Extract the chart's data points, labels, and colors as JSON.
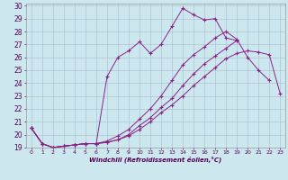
{
  "xlabel": "Windchill (Refroidissement éolien,°C)",
  "background_color": "#cce8ee",
  "line_color": "#882288",
  "grid_color": "#aabbcc",
  "xlim": [
    -0.5,
    23.5
  ],
  "ylim": [
    19,
    30.2
  ],
  "xticks": [
    0,
    1,
    2,
    3,
    4,
    5,
    6,
    7,
    8,
    9,
    10,
    11,
    12,
    13,
    14,
    15,
    16,
    17,
    18,
    19,
    20,
    21,
    22,
    23
  ],
  "yticks": [
    19,
    20,
    21,
    22,
    23,
    24,
    25,
    26,
    27,
    28,
    29,
    30
  ],
  "lines": [
    {
      "x": [
        0,
        1,
        2,
        3,
        4,
        5,
        6,
        7,
        8,
        9,
        10,
        11,
        12,
        13,
        14,
        15,
        16,
        17,
        18,
        19,
        20,
        21,
        22,
        23
      ],
      "y": [
        20.5,
        19.3,
        19.0,
        19.1,
        19.2,
        19.3,
        19.3,
        19.4,
        19.6,
        19.9,
        20.4,
        21.0,
        21.7,
        22.3,
        23.0,
        23.8,
        24.5,
        25.2,
        25.9,
        26.3,
        26.5,
        26.4,
        26.2,
        23.2
      ]
    },
    {
      "x": [
        0,
        1,
        2,
        3,
        4,
        5,
        6,
        7,
        8,
        9,
        10,
        11,
        12,
        13,
        14,
        15,
        16,
        17,
        18,
        19,
        20,
        21,
        22,
        23
      ],
      "y": [
        20.5,
        19.3,
        19.0,
        19.1,
        19.2,
        19.3,
        19.3,
        19.4,
        19.6,
        20.0,
        20.7,
        21.3,
        22.1,
        22.8,
        23.8,
        24.7,
        25.5,
        26.1,
        26.7,
        27.3,
        null,
        null,
        null,
        null
      ]
    },
    {
      "x": [
        0,
        1,
        2,
        3,
        4,
        5,
        6,
        7,
        8,
        9,
        10,
        11,
        12,
        13,
        14,
        15,
        16,
        17,
        18,
        19,
        20,
        21,
        22,
        23
      ],
      "y": [
        20.5,
        19.3,
        19.0,
        19.1,
        19.2,
        19.3,
        19.3,
        19.5,
        19.9,
        20.4,
        21.2,
        22.0,
        23.0,
        24.2,
        25.4,
        26.2,
        26.8,
        27.5,
        28.0,
        27.4,
        26.0,
        25.0,
        24.2,
        null
      ]
    },
    {
      "x": [
        0,
        1,
        2,
        3,
        4,
        5,
        6,
        7,
        8,
        9,
        10,
        11,
        12,
        13,
        14,
        15,
        16,
        17,
        18,
        19
      ],
      "y": [
        20.5,
        19.3,
        19.0,
        19.1,
        19.2,
        19.3,
        19.3,
        24.5,
        26.0,
        26.5,
        27.2,
        26.3,
        27.0,
        28.4,
        29.8,
        29.3,
        28.9,
        29.0,
        27.5,
        27.3
      ]
    }
  ]
}
